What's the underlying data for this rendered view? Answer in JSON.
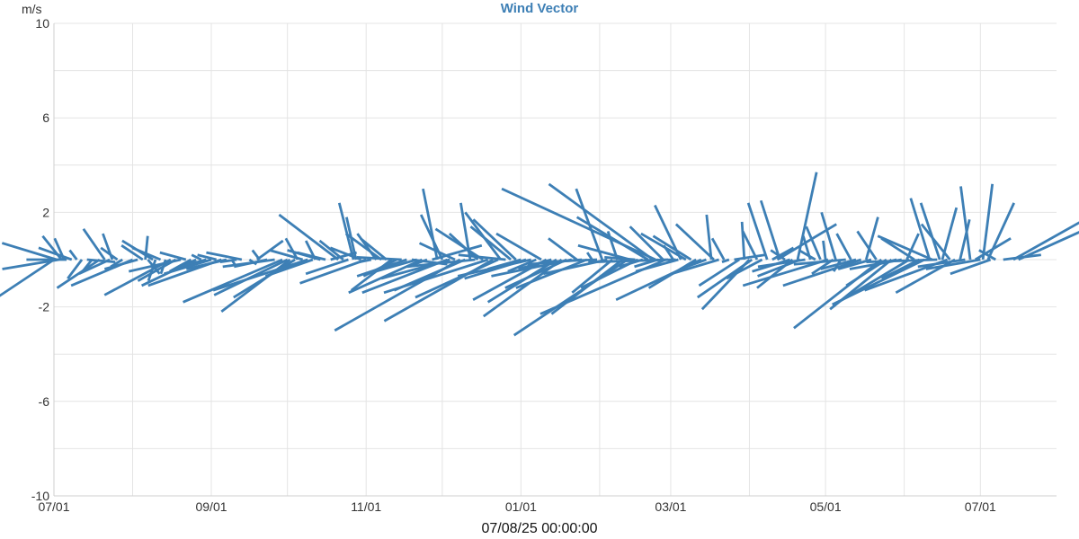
{
  "chart_data": {
    "type": "wind vector (stick plot)",
    "title": "Wind Vector",
    "ylabel": "m/s",
    "xlabel": "07/08/25 00:00:00",
    "ylim": [
      -10,
      10
    ],
    "y_ticks": [
      "10",
      "6",
      "2",
      "-2",
      "-6",
      "-10"
    ],
    "y_tick_values": [
      10,
      6,
      2,
      -2,
      -6,
      -10
    ],
    "x_tick_labels": [
      "07/01",
      "09/01",
      "11/01",
      "01/01",
      "03/01",
      "05/01",
      "07/01"
    ],
    "x_tick_dates": [
      "2024-07-01",
      "2024-09-01",
      "2024-11-01",
      "2025-01-01",
      "2025-03-01",
      "2025-05-01",
      "2025-07-01"
    ],
    "x_range": [
      "2024-07-01",
      "2025-07-31"
    ],
    "grid": true,
    "color": "#3d7fb5",
    "vectors": [
      {
        "date": "2024-07-01",
        "u": -3.3,
        "v": -2.2
      },
      {
        "date": "2024-07-02",
        "u": -2.3,
        "v": 0.7
      },
      {
        "date": "2024-07-03",
        "u": -2.4,
        "v": -0.4
      },
      {
        "date": "2024-07-04",
        "u": -0.8,
        "v": 1.0
      },
      {
        "date": "2024-07-05",
        "u": -0.4,
        "v": 0.9
      },
      {
        "date": "2024-07-06",
        "u": -1.7,
        "v": 0.0
      },
      {
        "date": "2024-07-08",
        "u": -1.4,
        "v": 0.5
      },
      {
        "date": "2024-07-10",
        "u": -0.3,
        "v": 0.4
      },
      {
        "date": "2024-07-12",
        "u": -0.6,
        "v": -0.8
      },
      {
        "date": "2024-07-14",
        "u": 1.2,
        "v": -0.1
      },
      {
        "date": "2024-07-16",
        "u": -0.4,
        "v": -0.5
      },
      {
        "date": "2024-07-19",
        "u": -1.8,
        "v": -1.2
      },
      {
        "date": "2024-07-21",
        "u": -0.9,
        "v": 1.3
      },
      {
        "date": "2024-07-23",
        "u": -1.3,
        "v": -0.6
      },
      {
        "date": "2024-07-24",
        "u": -0.4,
        "v": 1.1
      },
      {
        "date": "2024-07-26",
        "u": -0.7,
        "v": 0.5
      },
      {
        "date": "2024-07-28",
        "u": -0.5,
        "v": -0.3
      },
      {
        "date": "2024-08-01",
        "u": -2.6,
        "v": -1.1
      },
      {
        "date": "2024-08-03",
        "u": -1.4,
        "v": -0.4
      },
      {
        "date": "2024-08-05",
        "u": -0.9,
        "v": 0.6
      },
      {
        "date": "2024-08-06",
        "u": 0.1,
        "v": 1.0
      },
      {
        "date": "2024-08-07",
        "u": 0.5,
        "v": -0.6
      },
      {
        "date": "2024-08-09",
        "u": -1.3,
        "v": 0.8
      },
      {
        "date": "2024-08-10",
        "u": -0.3,
        "v": -0.9
      },
      {
        "date": "2024-08-12",
        "u": -1.2,
        "v": 0.5
      },
      {
        "date": "2024-08-14",
        "u": -0.2,
        "v": -0.6
      },
      {
        "date": "2024-08-16",
        "u": -2.8,
        "v": -1.5
      },
      {
        "date": "2024-08-18",
        "u": -1.6,
        "v": -0.9
      },
      {
        "date": "2024-08-20",
        "u": -2.2,
        "v": -0.5
      },
      {
        "date": "2024-08-22",
        "u": -1.1,
        "v": 0.3
      },
      {
        "date": "2024-08-24",
        "u": -0.9,
        "v": -0.5
      },
      {
        "date": "2024-08-26",
        "u": -2.3,
        "v": -1.1
      },
      {
        "date": "2024-08-28",
        "u": -0.4,
        "v": 0.2
      },
      {
        "date": "2024-08-30",
        "u": -1.1,
        "v": -0.3
      },
      {
        "date": "2024-09-01",
        "u": -2.0,
        "v": -0.6
      },
      {
        "date": "2024-09-03",
        "u": -0.8,
        "v": 0.2
      },
      {
        "date": "2024-09-05",
        "u": -3.1,
        "v": -1.1
      },
      {
        "date": "2024-09-07",
        "u": -1.7,
        "v": -0.4
      },
      {
        "date": "2024-09-09",
        "u": 0.2,
        "v": -0.3
      },
      {
        "date": "2024-09-11",
        "u": -0.7,
        "v": -0.1
      },
      {
        "date": "2024-09-13",
        "u": -1.5,
        "v": 0.3
      },
      {
        "date": "2024-09-16",
        "u": 0.3,
        "v": -0.2
      },
      {
        "date": "2024-09-19",
        "u": 1.1,
        "v": 0.8
      },
      {
        "date": "2024-09-20",
        "u": -0.3,
        "v": 0.4
      },
      {
        "date": "2024-09-23",
        "u": -1.4,
        "v": -0.3
      },
      {
        "date": "2024-09-26",
        "u": -2.2,
        "v": -0.3
      },
      {
        "date": "2024-09-29",
        "u": -4.2,
        "v": -1.8
      },
      {
        "date": "2024-10-01",
        "u": -3.1,
        "v": -1.5
      },
      {
        "date": "2024-10-02",
        "u": -2.9,
        "v": -2.2
      },
      {
        "date": "2024-10-04",
        "u": -2.6,
        "v": -1.6
      },
      {
        "date": "2024-10-05",
        "u": -0.5,
        "v": 0.9
      },
      {
        "date": "2024-10-07",
        "u": -1.4,
        "v": 0.4
      },
      {
        "date": "2024-10-09",
        "u": -4.0,
        "v": -1.3
      },
      {
        "date": "2024-10-11",
        "u": -2.0,
        "v": -0.7
      },
      {
        "date": "2024-10-12",
        "u": -0.4,
        "v": 0.8
      },
      {
        "date": "2024-10-14",
        "u": -1.4,
        "v": 0.4
      },
      {
        "date": "2024-10-16",
        "u": -1.2,
        "v": 0.3
      },
      {
        "date": "2024-10-18",
        "u": 1.1,
        "v": 0.3
      },
      {
        "date": "2024-10-21",
        "u": -2.5,
        "v": 1.9
      },
      {
        "date": "2024-10-23",
        "u": -1.0,
        "v": 0.8
      },
      {
        "date": "2024-10-25",
        "u": -1.8,
        "v": -0.6
      },
      {
        "date": "2024-10-27",
        "u": -0.6,
        "v": 2.4
      },
      {
        "date": "2024-10-28",
        "u": -0.4,
        "v": 1.8
      },
      {
        "date": "2024-10-30",
        "u": -1.3,
        "v": 0.5
      },
      {
        "date": "2024-11-01",
        "u": -2.8,
        "v": -1.0
      },
      {
        "date": "2024-11-03",
        "u": -0.5,
        "v": -0.1
      },
      {
        "date": "2024-11-05",
        "u": -0.8,
        "v": 1.1
      },
      {
        "date": "2024-11-07",
        "u": -1.5,
        "v": 1.1
      },
      {
        "date": "2024-11-09",
        "u": -1.1,
        "v": 0.9
      },
      {
        "date": "2024-11-11",
        "u": -1.7,
        "v": -1.3
      },
      {
        "date": "2024-11-13",
        "u": -1.4,
        "v": -0.7
      },
      {
        "date": "2024-11-15",
        "u": -1.9,
        "v": 0.1
      },
      {
        "date": "2024-11-17",
        "u": -2.1,
        "v": -0.7
      },
      {
        "date": "2024-11-19",
        "u": 1.5,
        "v": -0.2
      },
      {
        "date": "2024-11-21",
        "u": -2.1,
        "v": -0.6
      },
      {
        "date": "2024-11-23",
        "u": -3.1,
        "v": -1.4
      },
      {
        "date": "2024-11-25",
        "u": -0.8,
        "v": -0.3
      },
      {
        "date": "2024-11-27",
        "u": 2.1,
        "v": 0.6
      },
      {
        "date": "2024-11-29",
        "u": -0.6,
        "v": 3.0
      },
      {
        "date": "2024-12-01",
        "u": -0.9,
        "v": 1.9
      },
      {
        "date": "2024-12-03",
        "u": -3.6,
        "v": -1.4
      },
      {
        "date": "2024-12-04",
        "u": -2.9,
        "v": -0.8
      },
      {
        "date": "2024-12-06",
        "u": -1.5,
        "v": 0.7
      },
      {
        "date": "2024-12-08",
        "u": -5.3,
        "v": -3.0
      },
      {
        "date": "2024-12-10",
        "u": -3.0,
        "v": -1.3
      },
      {
        "date": "2024-12-12",
        "u": -0.4,
        "v": 2.4
      },
      {
        "date": "2024-12-14",
        "u": -2.9,
        "v": -0.3
      },
      {
        "date": "2024-12-15",
        "u": -1.2,
        "v": 1.1
      },
      {
        "date": "2024-12-17",
        "u": -2.0,
        "v": 1.3
      },
      {
        "date": "2024-12-19",
        "u": -4.4,
        "v": -1.4
      },
      {
        "date": "2024-12-21",
        "u": -4.6,
        "v": -2.6
      },
      {
        "date": "2024-12-23",
        "u": -3.5,
        "v": -1.6
      },
      {
        "date": "2024-12-24",
        "u": -1.5,
        "v": 2.0
      },
      {
        "date": "2024-12-26",
        "u": -2.0,
        "v": 0.2
      },
      {
        "date": "2024-12-28",
        "u": -1.7,
        "v": 1.4
      },
      {
        "date": "2024-12-30",
        "u": -1.8,
        "v": 1.7
      },
      {
        "date": "2025-01-01",
        "u": -1.4,
        "v": -0.4
      },
      {
        "date": "2025-01-03",
        "u": -2.6,
        "v": -0.8
      },
      {
        "date": "2025-01-05",
        "u": -3.1,
        "v": -0.7
      },
      {
        "date": "2025-01-07",
        "u": -1.2,
        "v": -0.5
      },
      {
        "date": "2025-01-09",
        "u": -1.9,
        "v": 1.1
      },
      {
        "date": "2025-01-11",
        "u": -3.1,
        "v": -1.7
      },
      {
        "date": "2025-01-13",
        "u": -1.4,
        "v": -0.4
      },
      {
        "date": "2025-01-15",
        "u": -2.9,
        "v": -1.8
      },
      {
        "date": "2025-01-17",
        "u": -3.3,
        "v": -2.4
      },
      {
        "date": "2025-01-19",
        "u": -2.6,
        "v": -1.2
      },
      {
        "date": "2025-01-21",
        "u": -3.4,
        "v": -0.7
      },
      {
        "date": "2025-01-23",
        "u": -1.2,
        "v": 0.9
      },
      {
        "date": "2025-01-25",
        "u": -2.3,
        "v": -0.2
      },
      {
        "date": "2025-01-27",
        "u": -3.0,
        "v": -1.2
      },
      {
        "date": "2025-01-29",
        "u": -0.2,
        "v": 0.3
      },
      {
        "date": "2025-01-31",
        "u": -2.3,
        "v": -0.1
      },
      {
        "date": "2025-02-02",
        "u": -1.1,
        "v": 3.0
      },
      {
        "date": "2025-02-04",
        "u": -2.7,
        "v": -0.6
      },
      {
        "date": "2025-02-06",
        "u": -1.7,
        "v": -1.4
      },
      {
        "date": "2025-02-08",
        "u": -0.4,
        "v": 1.2
      },
      {
        "date": "2025-02-10",
        "u": -3.0,
        "v": -2.3
      },
      {
        "date": "2025-02-12",
        "u": -4.8,
        "v": -3.2
      },
      {
        "date": "2025-02-13",
        "u": -2.2,
        "v": 0.6
      },
      {
        "date": "2025-02-15",
        "u": -1.3,
        "v": 0.1
      },
      {
        "date": "2025-02-16",
        "u": -2.4,
        "v": -1.2
      },
      {
        "date": "2025-02-18",
        "u": -1.0,
        "v": -0.3
      },
      {
        "date": "2025-02-20",
        "u": -3.0,
        "v": 1.8
      },
      {
        "date": "2025-02-22",
        "u": -4.4,
        "v": 3.2
      },
      {
        "date": "2025-02-23",
        "u": -6.5,
        "v": 3.0
      },
      {
        "date": "2025-02-24",
        "u": -1.0,
        "v": -0.3
      },
      {
        "date": "2025-02-26",
        "u": -1.4,
        "v": 1.4
      },
      {
        "date": "2025-02-27",
        "u": -5.3,
        "v": -2.3
      },
      {
        "date": "2025-02-28",
        "u": -3.2,
        "v": -0.1
      },
      {
        "date": "2025-03-02",
        "u": -0.4,
        "v": 0.6
      },
      {
        "date": "2025-03-03",
        "u": -3.7,
        "v": -0.1
      },
      {
        "date": "2025-03-04",
        "u": -1.8,
        "v": -0.5
      },
      {
        "date": "2025-03-05",
        "u": -1.1,
        "v": 2.3
      },
      {
        "date": "2025-03-07",
        "u": -1.9,
        "v": 1.1
      },
      {
        "date": "2025-03-09",
        "u": -1.6,
        "v": 1.0
      },
      {
        "date": "2025-03-11",
        "u": -2.0,
        "v": -1.2
      },
      {
        "date": "2025-03-13",
        "u": -3.6,
        "v": -1.7
      },
      {
        "date": "2025-03-15",
        "u": -1.1,
        "v": -0.4
      },
      {
        "date": "2025-03-17",
        "u": -0.2,
        "v": 1.9
      },
      {
        "date": "2025-03-18",
        "u": -1.6,
        "v": 1.5
      },
      {
        "date": "2025-03-20",
        "u": -2.0,
        "v": -0.6
      },
      {
        "date": "2025-03-22",
        "u": -0.5,
        "v": 0.9
      },
      {
        "date": "2025-03-24",
        "u": -0.3,
        "v": -0.1
      },
      {
        "date": "2025-03-26",
        "u": 1.3,
        "v": 0.2
      },
      {
        "date": "2025-03-28",
        "u": -1.7,
        "v": -1.1
      },
      {
        "date": "2025-03-30",
        "u": -0.1,
        "v": 1.6
      },
      {
        "date": "2025-04-01",
        "u": -2.0,
        "v": -2.1
      },
      {
        "date": "2025-04-02",
        "u": -2.3,
        "v": -1.6
      },
      {
        "date": "2025-04-04",
        "u": -0.6,
        "v": 1.2
      },
      {
        "date": "2025-04-06",
        "u": -1.5,
        "v": -0.8
      },
      {
        "date": "2025-04-08",
        "u": -0.8,
        "v": 2.4
      },
      {
        "date": "2025-04-10",
        "u": 0.9,
        "v": 0.5
      },
      {
        "date": "2025-04-12",
        "u": 2.5,
        "v": 1.5
      },
      {
        "date": "2025-04-13",
        "u": -0.8,
        "v": 2.5
      },
      {
        "date": "2025-04-15",
        "u": -0.6,
        "v": 0.4
      },
      {
        "date": "2025-04-17",
        "u": -1.6,
        "v": -0.5
      },
      {
        "date": "2025-04-18",
        "u": -1.5,
        "v": -1.2
      },
      {
        "date": "2025-04-20",
        "u": 0.8,
        "v": 3.7
      },
      {
        "date": "2025-04-21",
        "u": -1.8,
        "v": -0.7
      },
      {
        "date": "2025-04-23",
        "u": -2.0,
        "v": -0.3
      },
      {
        "date": "2025-04-25",
        "u": -0.3,
        "v": 1.0
      },
      {
        "date": "2025-04-27",
        "u": -0.7,
        "v": 0.4
      },
      {
        "date": "2025-04-29",
        "u": -0.6,
        "v": 1.4
      },
      {
        "date": "2025-05-01",
        "u": -0.1,
        "v": 0.8
      },
      {
        "date": "2025-05-02",
        "u": -3.6,
        "v": -1.1
      },
      {
        "date": "2025-05-04",
        "u": -0.9,
        "v": -0.6
      },
      {
        "date": "2025-05-05",
        "u": -0.6,
        "v": 2.0
      },
      {
        "date": "2025-05-07",
        "u": -0.3,
        "v": -0.5
      },
      {
        "date": "2025-05-09",
        "u": -2.2,
        "v": -0.2
      },
      {
        "date": "2025-05-11",
        "u": -0.6,
        "v": 1.1
      },
      {
        "date": "2025-05-13",
        "u": -1.5,
        "v": -0.4
      },
      {
        "date": "2025-05-15",
        "u": -3.3,
        "v": -1.1
      },
      {
        "date": "2025-05-17",
        "u": 0.5,
        "v": 1.8
      },
      {
        "date": "2025-05-19",
        "u": -1.4,
        "v": -0.4
      },
      {
        "date": "2025-05-21",
        "u": -0.8,
        "v": 1.2
      },
      {
        "date": "2025-05-23",
        "u": -3.7,
        "v": -2.9
      },
      {
        "date": "2025-05-25",
        "u": -1.7,
        "v": -1.1
      },
      {
        "date": "2025-05-27",
        "u": -2.6,
        "v": -2.1
      },
      {
        "date": "2025-05-29",
        "u": -0.8,
        "v": -0.2
      },
      {
        "date": "2025-05-31",
        "u": -2.2,
        "v": -0.4
      },
      {
        "date": "2025-06-02",
        "u": 0.5,
        "v": 1.1
      },
      {
        "date": "2025-06-03",
        "u": -3.0,
        "v": -1.8
      },
      {
        "date": "2025-06-05",
        "u": -1.4,
        "v": 0.9
      },
      {
        "date": "2025-06-07",
        "u": -1.6,
        "v": -0.8
      },
      {
        "date": "2025-06-09",
        "u": -3.9,
        "v": -1.9
      },
      {
        "date": "2025-06-11",
        "u": -0.8,
        "v": 2.6
      },
      {
        "date": "2025-06-12",
        "u": -2.3,
        "v": 1.0
      },
      {
        "date": "2025-06-14",
        "u": -3.0,
        "v": -0.1
      },
      {
        "date": "2025-06-15",
        "u": -0.8,
        "v": 2.4
      },
      {
        "date": "2025-06-16",
        "u": 0.6,
        "v": 2.2
      },
      {
        "date": "2025-06-18",
        "u": -3.5,
        "v": -1.3
      },
      {
        "date": "2025-06-19",
        "u": -1.2,
        "v": 1.5
      },
      {
        "date": "2025-06-21",
        "u": -2.5,
        "v": -1.4
      },
      {
        "date": "2025-06-23",
        "u": 0.4,
        "v": 1.7
      },
      {
        "date": "2025-06-25",
        "u": -2.0,
        "v": -0.3
      },
      {
        "date": "2025-06-27",
        "u": -0.4,
        "v": 3.1
      },
      {
        "date": "2025-06-29",
        "u": 1.5,
        "v": 0.9
      },
      {
        "date": "2025-07-01",
        "u": -2.3,
        "v": -0.4
      },
      {
        "date": "2025-07-02",
        "u": 0.4,
        "v": 3.2
      },
      {
        "date": "2025-07-04",
        "u": 1.1,
        "v": 2.4
      },
      {
        "date": "2025-07-05",
        "u": -1.7,
        "v": -0.6
      },
      {
        "date": "2025-07-07",
        "u": -0.7,
        "v": 0.4
      },
      {
        "date": "2025-07-10",
        "u": 1.6,
        "v": 0.2
      },
      {
        "date": "2025-07-14",
        "u": 3.2,
        "v": 1.8
      },
      {
        "date": "2025-07-16",
        "u": 3.1,
        "v": 1.4
      }
    ]
  }
}
